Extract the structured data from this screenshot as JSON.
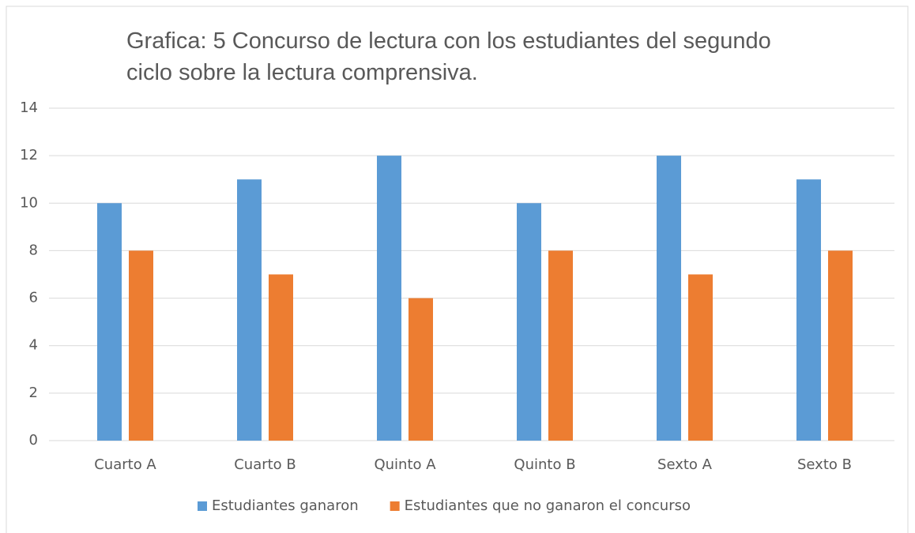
{
  "chart_data": {
    "type": "bar",
    "title": "Grafica: 5 Concurso de lectura con los estudiantes del segundo ciclo sobre la lectura comprensiva.",
    "categories": [
      "Cuarto A",
      "Cuarto B",
      "Quinto A",
      "Quinto B",
      "Sexto A",
      "Sexto B"
    ],
    "series": [
      {
        "name": "Estudiantes ganaron",
        "color": "#5b9bd5",
        "values": [
          10,
          11,
          12,
          10,
          12,
          11
        ]
      },
      {
        "name": "Estudiantes que no ganaron el concurso",
        "color": "#ed7d31",
        "values": [
          8,
          7,
          6,
          8,
          7,
          8
        ]
      }
    ],
    "ylim": [
      0,
      14
    ],
    "yticks": [
      0,
      2,
      4,
      6,
      8,
      10,
      12,
      14
    ],
    "grid": true,
    "legend": "bottom"
  }
}
